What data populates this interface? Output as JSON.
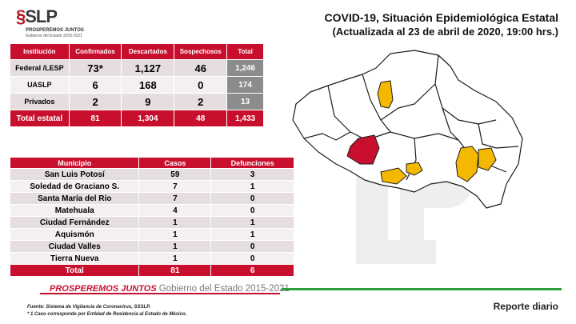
{
  "logo": {
    "name": "SLP",
    "tagline": "PROSPEREMOS JUNTOS",
    "subtag": "Gobierno del Estado 2015-2021"
  },
  "header": {
    "title": "COVID-19, Situación Epidemiológica Estatal",
    "subtitle": "(Actualizada al 23 de abril de 2020, 19:00 hrs.)"
  },
  "summary": {
    "headers": [
      "Institución",
      "Confirmados",
      "Descartados",
      "Sospechosos",
      "Total"
    ],
    "rows": [
      {
        "label": "Federal /LESP",
        "confirmados": "73*",
        "descartados": "1,127",
        "sospechosos": "46",
        "total": "1,246"
      },
      {
        "label": "UASLP",
        "confirmados": "6",
        "descartados": "168",
        "sospechosos": "0",
        "total": "174"
      },
      {
        "label": "Privados",
        "confirmados": "2",
        "descartados": "9",
        "sospechosos": "2",
        "total": "13"
      }
    ],
    "total": {
      "label": "Total estatal",
      "confirmados": "81",
      "descartados": "1,304",
      "sospechosos": "48",
      "total": "1,433"
    }
  },
  "municipios": {
    "headers": [
      "Municipio",
      "Casos",
      "Defunciones"
    ],
    "rows": [
      {
        "municipio": "San Luis Potosí",
        "casos": "59",
        "defunciones": "3"
      },
      {
        "municipio": "Soledad de Graciano S.",
        "casos": "7",
        "defunciones": "1"
      },
      {
        "municipio": "Santa María del Río",
        "casos": "7",
        "defunciones": "0"
      },
      {
        "municipio": "Matehuala",
        "casos": "4",
        "defunciones": "0"
      },
      {
        "municipio": "Ciudad Fernández",
        "casos": "1",
        "defunciones": "1"
      },
      {
        "municipio": "Aquismón",
        "casos": "1",
        "defunciones": "1"
      },
      {
        "municipio": "Ciudad Valles",
        "casos": "1",
        "defunciones": "0"
      },
      {
        "municipio": "Tierra Nueva",
        "casos": "1",
        "defunciones": "0"
      }
    ],
    "total": {
      "municipio": "Total",
      "casos": "81",
      "defunciones": "6"
    }
  },
  "map": {
    "colors": {
      "base": "#ffffff",
      "stroke": "#1a1a1a",
      "highlight": "#f5b800",
      "capital": "#c8102e"
    }
  },
  "footer": {
    "brand_bold": "PROSPEREMOS JUNTOS",
    "brand_rest": "Gobierno del Estado 2015-2021",
    "report": "Reporte diario",
    "source": "Fuente: Sistema de Vigilancia de Coronavirus, SSSLP.",
    "note": "* 1 Caso corresponde por Entidad de Residencia al Estado de México."
  }
}
